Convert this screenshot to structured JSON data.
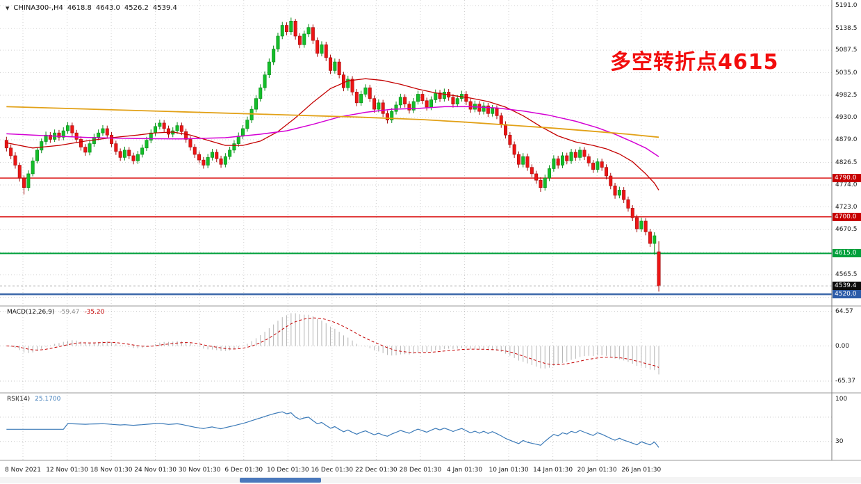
{
  "header": {
    "symbol": "CHINA300-,H4",
    "open": "4618.8",
    "high": "4643.0",
    "low": "4526.2",
    "close": "4539.4"
  },
  "annotation": {
    "text": "多空转折点4615",
    "color": "#f20d0d"
  },
  "macd_header": {
    "name": "MACD(12,26,9)",
    "main_value": "-59.47",
    "signal_value": "-35.20"
  },
  "rsi_header": {
    "name": "RSI(14)",
    "value": "25.1700"
  },
  "chart_data": {
    "type": "candlestick",
    "symbol": "CHINA300-",
    "timeframe": "H4",
    "last_ohlc": {
      "open": 4618.8,
      "high": 4643.0,
      "low": 4526.2,
      "close": 4539.4
    },
    "x_labels": [
      "8 Nov 2021",
      "12 Nov 01:30",
      "18 Nov 01:30",
      "24 Nov 01:30",
      "30 Nov 01:30",
      "6 Dec 01:30",
      "10 Dec 01:30",
      "16 Dec 01:30",
      "22 Dec 01:30",
      "28 Dec 01:30",
      "4 Jan 01:30",
      "10 Jan 01:30",
      "14 Jan 01:30",
      "20 Jan 01:30",
      "26 Jan 01:30"
    ],
    "price_axis": {
      "ticks": [
        {
          "v": 5191.0,
          "t": "5191.0"
        },
        {
          "v": 5138.5,
          "t": "5138.5"
        },
        {
          "v": 5087.5,
          "t": "5087.5"
        },
        {
          "v": 5035.0,
          "t": "5035.0"
        },
        {
          "v": 4982.5,
          "t": "4982.5"
        },
        {
          "v": 4930.0,
          "t": "4930.0"
        },
        {
          "v": 4879.0,
          "t": "4879.0"
        },
        {
          "v": 4826.5,
          "t": "4826.5"
        },
        {
          "v": 4774.0,
          "t": "4774.0"
        },
        {
          "v": 4723.0,
          "t": "4723.0"
        },
        {
          "v": 4670.5,
          "t": "4670.5"
        },
        {
          "v": 4565.5,
          "t": "4565.5"
        }
      ],
      "grid_only": [
        4618.0,
        4513.0
      ]
    },
    "horizontal_levels": [
      {
        "price": 4790.0,
        "label": "4790.0",
        "color": "#d80000",
        "line_width": 1.4,
        "badge_bg": "#c80000"
      },
      {
        "price": 4700.0,
        "label": "4700.0",
        "color": "#d80000",
        "line_width": 1.4,
        "badge_bg": "#c80000"
      },
      {
        "price": 4615.0,
        "label": "4615.0",
        "color": "#00a03c",
        "line_width": 2.0,
        "badge_bg": "#00a03c"
      },
      {
        "price": 4520.0,
        "label": "4520.0",
        "color": "#3a66a8",
        "line_width": 2.6,
        "badge_bg": "#2b5ba8"
      }
    ],
    "current_price": {
      "price": 4539.4,
      "label": "4539.4",
      "badge_bg": "#0c0c0c",
      "line_color": "#b5b5b5"
    },
    "up": {
      "fill": "#14bd2a",
      "stroke": "#068a16"
    },
    "down": {
      "fill": "#ec1515",
      "stroke": "#a30b0b"
    },
    "candles": [
      [
        4878,
        4886,
        4852,
        4860
      ],
      [
        4860,
        4868,
        4834,
        4842
      ],
      [
        4842,
        4850,
        4812,
        4820
      ],
      [
        4820,
        4826,
        4782,
        4790
      ],
      [
        4790,
        4796,
        4752,
        4768
      ],
      [
        4768,
        4808,
        4760,
        4800
      ],
      [
        4800,
        4838,
        4794,
        4830
      ],
      [
        4830,
        4862,
        4824,
        4855
      ],
      [
        4855,
        4882,
        4848,
        4875
      ],
      [
        4875,
        4898,
        4868,
        4890
      ],
      [
        4890,
        4897,
        4872,
        4880
      ],
      [
        4880,
        4903,
        4874,
        4895
      ],
      [
        4895,
        4902,
        4877,
        4885
      ],
      [
        4885,
        4908,
        4878,
        4900
      ],
      [
        4900,
        4920,
        4893,
        4912
      ],
      [
        4912,
        4919,
        4887,
        4895
      ],
      [
        4895,
        4902,
        4872,
        4880
      ],
      [
        4880,
        4887,
        4854,
        4862
      ],
      [
        4862,
        4869,
        4842,
        4850
      ],
      [
        4850,
        4878,
        4843,
        4870
      ],
      [
        4870,
        4893,
        4863,
        4885
      ],
      [
        4885,
        4903,
        4878,
        4895
      ],
      [
        4895,
        4913,
        4888,
        4905
      ],
      [
        4905,
        4912,
        4882,
        4890
      ],
      [
        4890,
        4897,
        4862,
        4870
      ],
      [
        4870,
        4877,
        4844,
        4852
      ],
      [
        4852,
        4859,
        4830,
        4838
      ],
      [
        4838,
        4863,
        4831,
        4855
      ],
      [
        4855,
        4862,
        4834,
        4842
      ],
      [
        4842,
        4849,
        4822,
        4830
      ],
      [
        4830,
        4853,
        4823,
        4845
      ],
      [
        4845,
        4868,
        4838,
        4860
      ],
      [
        4860,
        4886,
        4853,
        4878
      ],
      [
        4878,
        4903,
        4871,
        4895
      ],
      [
        4895,
        4918,
        4888,
        4910
      ],
      [
        4910,
        4926,
        4903,
        4918
      ],
      [
        4918,
        4925,
        4897,
        4905
      ],
      [
        4905,
        4912,
        4884,
        4892
      ],
      [
        4892,
        4908,
        4885,
        4900
      ],
      [
        4900,
        4920,
        4893,
        4912
      ],
      [
        4912,
        4919,
        4890,
        4898
      ],
      [
        4898,
        4905,
        4872,
        4880
      ],
      [
        4880,
        4887,
        4854,
        4862
      ],
      [
        4862,
        4869,
        4837,
        4845
      ],
      [
        4845,
        4852,
        4824,
        4832
      ],
      [
        4832,
        4839,
        4812,
        4820
      ],
      [
        4820,
        4846,
        4813,
        4838
      ],
      [
        4838,
        4858,
        4831,
        4850
      ],
      [
        4850,
        4857,
        4827,
        4835
      ],
      [
        4835,
        4842,
        4814,
        4822
      ],
      [
        4822,
        4848,
        4815,
        4840
      ],
      [
        4840,
        4863,
        4833,
        4855
      ],
      [
        4855,
        4878,
        4848,
        4870
      ],
      [
        4870,
        4896,
        4863,
        4888
      ],
      [
        4888,
        4913,
        4881,
        4905
      ],
      [
        4905,
        4933,
        4898,
        4925
      ],
      [
        4925,
        4958,
        4918,
        4950
      ],
      [
        4950,
        4983,
        4943,
        4975
      ],
      [
        4975,
        5008,
        4968,
        5000
      ],
      [
        5000,
        5038,
        4993,
        5030
      ],
      [
        5030,
        5068,
        5023,
        5060
      ],
      [
        5060,
        5098,
        5053,
        5090
      ],
      [
        5090,
        5128,
        5083,
        5120
      ],
      [
        5120,
        5153,
        5113,
        5145
      ],
      [
        5145,
        5152,
        5122,
        5130
      ],
      [
        5130,
        5163,
        5123,
        5155
      ],
      [
        5155,
        5160,
        5112,
        5120
      ],
      [
        5120,
        5127,
        5092,
        5100
      ],
      [
        5100,
        5133,
        5093,
        5125
      ],
      [
        5125,
        5148,
        5118,
        5140
      ],
      [
        5140,
        5147,
        5102,
        5110
      ],
      [
        5110,
        5117,
        5072,
        5080
      ],
      [
        5080,
        5108,
        5073,
        5100
      ],
      [
        5100,
        5107,
        5062,
        5070
      ],
      [
        5070,
        5077,
        5032,
        5040
      ],
      [
        5040,
        5068,
        5033,
        5060
      ],
      [
        5060,
        5067,
        5022,
        5030
      ],
      [
        5030,
        5037,
        4992,
        5000
      ],
      [
        5000,
        5028,
        4993,
        5020
      ],
      [
        5020,
        5027,
        4982,
        4990
      ],
      [
        4990,
        4997,
        4957,
        4965
      ],
      [
        4965,
        4993,
        4958,
        4985
      ],
      [
        4985,
        5008,
        4978,
        5000
      ],
      [
        5000,
        5007,
        4967,
        4975
      ],
      [
        4975,
        4982,
        4942,
        4950
      ],
      [
        4950,
        4973,
        4943,
        4965
      ],
      [
        4965,
        4972,
        4932,
        4940
      ],
      [
        4940,
        4947,
        4917,
        4925
      ],
      [
        4925,
        4953,
        4918,
        4945
      ],
      [
        4945,
        4968,
        4938,
        4960
      ],
      [
        4960,
        4986,
        4953,
        4978
      ],
      [
        4978,
        4985,
        4954,
        4962
      ],
      [
        4962,
        4969,
        4940,
        4948
      ],
      [
        4948,
        4976,
        4941,
        4968
      ],
      [
        4968,
        4993,
        4961,
        4985
      ],
      [
        4985,
        4992,
        4962,
        4970
      ],
      [
        4970,
        4977,
        4947,
        4955
      ],
      [
        4955,
        4980,
        4948,
        4972
      ],
      [
        4972,
        4996,
        4965,
        4988
      ],
      [
        4988,
        4995,
        4967,
        4975
      ],
      [
        4975,
        4998,
        4968,
        4990
      ],
      [
        4990,
        4997,
        4970,
        4978
      ],
      [
        4978,
        4985,
        4954,
        4962
      ],
      [
        4962,
        4983,
        4955,
        4975
      ],
      [
        4975,
        4993,
        4968,
        4985
      ],
      [
        4985,
        4992,
        4960,
        4968
      ],
      [
        4968,
        4975,
        4942,
        4950
      ],
      [
        4950,
        4970,
        4943,
        4962
      ],
      [
        4962,
        4969,
        4937,
        4945
      ],
      [
        4945,
        4966,
        4938,
        4958
      ],
      [
        4958,
        4965,
        4932,
        4940
      ],
      [
        4940,
        4960,
        4933,
        4952
      ],
      [
        4952,
        4959,
        4927,
        4935
      ],
      [
        4935,
        4942,
        4907,
        4915
      ],
      [
        4915,
        4922,
        4882,
        4890
      ],
      [
        4890,
        4897,
        4860,
        4868
      ],
      [
        4868,
        4875,
        4837,
        4845
      ],
      [
        4845,
        4852,
        4814,
        4822
      ],
      [
        4822,
        4848,
        4815,
        4840
      ],
      [
        4840,
        4847,
        4807,
        4815
      ],
      [
        4815,
        4822,
        4792,
        4800
      ],
      [
        4800,
        4807,
        4777,
        4785
      ],
      [
        4785,
        4792,
        4758,
        4768
      ],
      [
        4768,
        4798,
        4761,
        4790
      ],
      [
        4790,
        4820,
        4783,
        4812
      ],
      [
        4812,
        4843,
        4805,
        4835
      ],
      [
        4835,
        4842,
        4812,
        4820
      ],
      [
        4820,
        4850,
        4813,
        4842
      ],
      [
        4842,
        4849,
        4822,
        4830
      ],
      [
        4830,
        4858,
        4823,
        4850
      ],
      [
        4850,
        4857,
        4830,
        4838
      ],
      [
        4838,
        4863,
        4831,
        4855
      ],
      [
        4855,
        4862,
        4832,
        4840
      ],
      [
        4840,
        4847,
        4817,
        4825
      ],
      [
        4825,
        4832,
        4802,
        4810
      ],
      [
        4810,
        4836,
        4803,
        4828
      ],
      [
        4828,
        4835,
        4807,
        4815
      ],
      [
        4815,
        4822,
        4787,
        4795
      ],
      [
        4795,
        4802,
        4764,
        4772
      ],
      [
        4772,
        4779,
        4742,
        4750
      ],
      [
        4750,
        4770,
        4743,
        4762
      ],
      [
        4762,
        4769,
        4732,
        4740
      ],
      [
        4740,
        4747,
        4712,
        4720
      ],
      [
        4720,
        4727,
        4690,
        4698
      ],
      [
        4698,
        4705,
        4664,
        4672
      ],
      [
        4672,
        4698,
        4665,
        4690
      ],
      [
        4690,
        4697,
        4657,
        4665
      ],
      [
        4665,
        4672,
        4630,
        4638
      ],
      [
        4638,
        4664,
        4612,
        4656
      ],
      [
        4618.8,
        4643.0,
        4526.2,
        4539.4
      ]
    ],
    "moving_averages": [
      {
        "name": "fast-ma",
        "color": "#c40000",
        "width": 1.3,
        "points": [
          [
            0,
            4872
          ],
          [
            6,
            4860
          ],
          [
            12,
            4866
          ],
          [
            18,
            4876
          ],
          [
            24,
            4884
          ],
          [
            30,
            4890
          ],
          [
            34,
            4895
          ],
          [
            38,
            4897
          ],
          [
            42,
            4890
          ],
          [
            46,
            4878
          ],
          [
            50,
            4866
          ],
          [
            54,
            4866
          ],
          [
            58,
            4876
          ],
          [
            62,
            4898
          ],
          [
            66,
            4930
          ],
          [
            70,
            4966
          ],
          [
            74,
            4998
          ],
          [
            78,
            5016
          ],
          [
            82,
            5021
          ],
          [
            86,
            5017
          ],
          [
            90,
            5008
          ],
          [
            94,
            4997
          ],
          [
            98,
            4988
          ],
          [
            102,
            4982
          ],
          [
            106,
            4976
          ],
          [
            110,
            4968
          ],
          [
            114,
            4955
          ],
          [
            118,
            4935
          ],
          [
            122,
            4910
          ],
          [
            126,
            4888
          ],
          [
            130,
            4874
          ],
          [
            134,
            4866
          ],
          [
            137,
            4858
          ],
          [
            140,
            4846
          ],
          [
            143,
            4828
          ],
          [
            146,
            4800
          ],
          [
            148,
            4778
          ],
          [
            149,
            4762
          ]
        ]
      },
      {
        "name": "mid-ma",
        "color": "#d400d4",
        "width": 1.5,
        "points": [
          [
            0,
            4893
          ],
          [
            10,
            4888
          ],
          [
            20,
            4884
          ],
          [
            30,
            4882
          ],
          [
            40,
            4881
          ],
          [
            50,
            4884
          ],
          [
            58,
            4892
          ],
          [
            64,
            4900
          ],
          [
            70,
            4915
          ],
          [
            76,
            4932
          ],
          [
            82,
            4943
          ],
          [
            88,
            4950
          ],
          [
            94,
            4952
          ],
          [
            100,
            4956
          ],
          [
            106,
            4956
          ],
          [
            112,
            4953
          ],
          [
            118,
            4946
          ],
          [
            124,
            4936
          ],
          [
            130,
            4922
          ],
          [
            135,
            4907
          ],
          [
            139,
            4892
          ],
          [
            143,
            4874
          ],
          [
            146,
            4860
          ],
          [
            149,
            4840
          ]
        ]
      },
      {
        "name": "slow-ma",
        "color": "#e2a117",
        "width": 1.8,
        "points": [
          [
            0,
            4956
          ],
          [
            20,
            4950
          ],
          [
            40,
            4944
          ],
          [
            60,
            4938
          ],
          [
            80,
            4932
          ],
          [
            95,
            4926
          ],
          [
            105,
            4920
          ],
          [
            115,
            4913
          ],
          [
            125,
            4906
          ],
          [
            135,
            4898
          ],
          [
            142,
            4892
          ],
          [
            149,
            4885
          ]
        ]
      }
    ],
    "macd": {
      "label": "MACD(12,26,9)",
      "main": -59.47,
      "signal": -35.2,
      "fast": 12,
      "slow": 26,
      "signal_period": 9,
      "display_scale": 0.85,
      "hist_color": "#b4b4b4",
      "signal_color": "#c40000",
      "axis_ticks": [
        {
          "v": 64.57,
          "t": "64.57"
        },
        {
          "v": 0,
          "t": "0.00"
        },
        {
          "v": -65.37,
          "t": "-65.37"
        }
      ]
    },
    "rsi": {
      "label": "RSI(14)",
      "period": 14,
      "last": 25.17,
      "color": "#3b7ab8",
      "axis_ticks": [
        {
          "v": 100,
          "t": "100"
        },
        {
          "v": 30,
          "t": "30"
        }
      ],
      "levels": [
        70,
        30
      ]
    }
  }
}
